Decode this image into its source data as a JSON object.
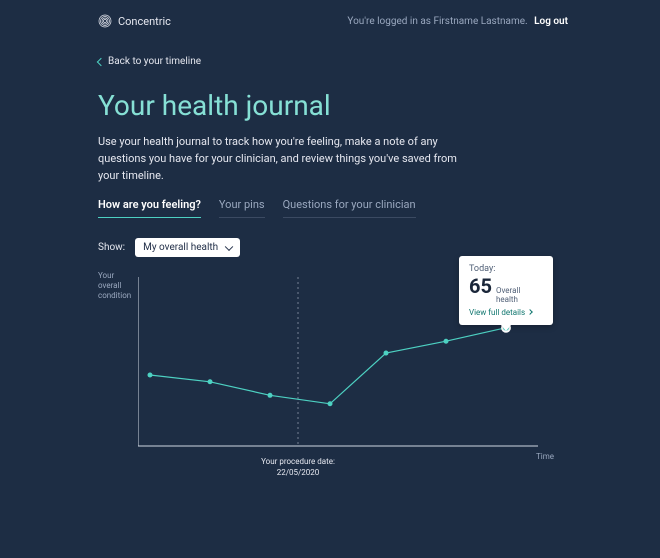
{
  "header": {
    "brand": "Concentric",
    "auth_prefix": "You're logged in as",
    "user_name": "Firstname Lastname.",
    "logout": "Log out"
  },
  "back_link": "Back to your timeline",
  "title": "Your health journal",
  "intro": "Use your health journal to track how you're feeling, make a note of any questions you have for your clinician, and review things you've saved from your timeline.",
  "tabs": [
    {
      "label": "How are you feeling?",
      "active": true
    },
    {
      "label": "Your pins",
      "active": false
    },
    {
      "label": "Questions for your clinician",
      "active": false
    }
  ],
  "filter": {
    "label": "Show:",
    "selected": "My overall health"
  },
  "chart": {
    "type": "line",
    "y_axis_label": "Your overall condition",
    "x_axis_label": "Time",
    "series_color": "#4dd1c2",
    "axis_color": "#cfd6e2",
    "points": [
      {
        "x": 0.03,
        "y": 0.42
      },
      {
        "x": 0.18,
        "y": 0.38
      },
      {
        "x": 0.33,
        "y": 0.3
      },
      {
        "x": 0.48,
        "y": 0.25
      },
      {
        "x": 0.62,
        "y": 0.55
      },
      {
        "x": 0.77,
        "y": 0.62
      },
      {
        "x": 0.92,
        "y": 0.7
      }
    ],
    "procedure_marker": {
      "x": 0.4,
      "label": "Your procedure date:",
      "date": "22/05/2020"
    },
    "tooltip": {
      "point_index": 6,
      "today_label": "Today:",
      "value": "65",
      "value_label": "Overall health",
      "link": "View full details"
    }
  }
}
